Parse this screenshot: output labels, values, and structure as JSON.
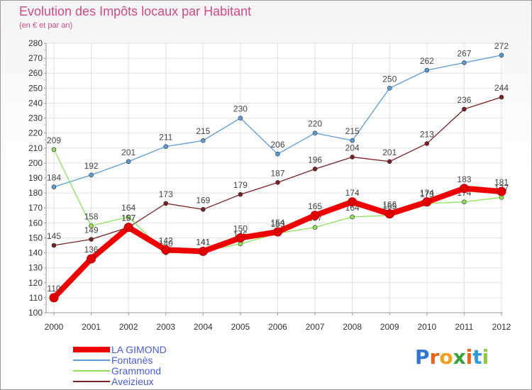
{
  "title": "Evolution des Impôts locaux par Habitant",
  "subtitle": "(en € et par an)",
  "logo": {
    "letters": [
      "P",
      "r",
      "o",
      "x",
      "i",
      "t",
      "i"
    ],
    "colors": [
      "#2f77d0",
      "#e8641b",
      "#f0a01a",
      "#3aa23a",
      "#e8641b",
      "#2f9bd6",
      "#8fc73e"
    ]
  },
  "chart_data": {
    "type": "line",
    "title": "Evolution des Impôts locaux par Habitant",
    "subtitle": "(en € et par an)",
    "xlabel": "",
    "ylabel": "",
    "x": [
      "2000",
      "2001",
      "2002",
      "2003",
      "2004",
      "2005",
      "2006",
      "2007",
      "2008",
      "2009",
      "2010",
      "2011",
      "2012"
    ],
    "ylim": [
      100,
      280
    ],
    "yticks": [
      "100",
      "110",
      "120",
      "130",
      "140",
      "150",
      "160",
      "170",
      "180",
      "190",
      "200",
      "210",
      "220",
      "230",
      "240",
      "250",
      "260",
      "270",
      "280"
    ],
    "grid": true,
    "legend_position": "bottom-left",
    "series": [
      {
        "name": "Fontanès",
        "color": "#5b9bd5",
        "values": [
          184,
          192,
          201,
          211,
          215,
          230,
          206,
          220,
          215,
          250,
          262,
          267,
          272
        ],
        "labels": [
          "184",
          "192",
          "201",
          "211",
          "215",
          "230",
          "206",
          "220",
          "215",
          "250",
          "262",
          "267",
          "272"
        ]
      },
      {
        "name": "Aveizieux",
        "color": "#7a1f24",
        "values": [
          145,
          149,
          157,
          173,
          169,
          179,
          187,
          196,
          204,
          201,
          213,
          236,
          244
        ],
        "labels": [
          "145",
          "149",
          "157",
          "173",
          "169",
          "179",
          "187",
          "196",
          "204",
          "201",
          "213",
          "236",
          "244"
        ]
      },
      {
        "name": "Grammond",
        "color": "#8ee05a",
        "values": [
          209,
          158,
          164,
          140,
          141,
          146,
          153,
          157,
          164,
          165,
          173,
          174,
          177
        ],
        "labels": [
          "209",
          "158",
          "164",
          "140",
          "141",
          "146",
          "153",
          "157",
          "164",
          "165",
          "173",
          "174",
          "177"
        ]
      },
      {
        "name": "LA GIMOND",
        "color": "#ee0000",
        "values": [
          110,
          136,
          157,
          142,
          141,
          150,
          154,
          165,
          174,
          166,
          174,
          183,
          181
        ],
        "labels": [
          "110",
          "136",
          "157",
          "142",
          "141",
          "150",
          "154",
          "165",
          "174",
          "166",
          "174",
          "183",
          "181"
        ]
      }
    ],
    "legend": [
      {
        "name": "LA GIMOND",
        "color": "#ee0000",
        "label_color": "#4a5bd8"
      },
      {
        "name": "Fontanès",
        "color": "#5b9bd5",
        "label_color": "#4a5bd8"
      },
      {
        "name": "Grammond",
        "color": "#8ee05a",
        "label_color": "#4a5bd8"
      },
      {
        "name": "Aveizieux",
        "color": "#7a1f24",
        "label_color": "#4a5bd8"
      }
    ]
  }
}
